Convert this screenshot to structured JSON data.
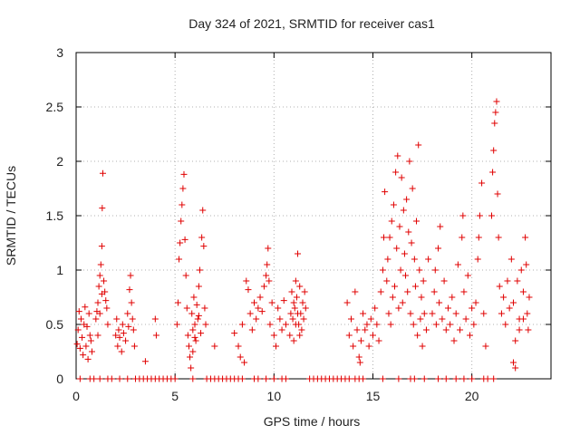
{
  "chart_data": {
    "type": "scatter",
    "title": "Day 324 of 2021, SRMTID for receiver cas1",
    "xlabel": "GPS time / hours",
    "ylabel": "SRMTID / TECUs",
    "xlim": [
      0,
      24
    ],
    "ylim": [
      0,
      3
    ],
    "xticks": [
      0,
      5,
      10,
      15,
      20
    ],
    "xtick_labels": [
      "0",
      "5",
      "10",
      "15",
      "20"
    ],
    "yticks": [
      0,
      0.5,
      1,
      1.5,
      2,
      2.5,
      3
    ],
    "ytick_labels": [
      "0",
      "0.5",
      "1",
      "1.5",
      "2",
      "2.5",
      "3"
    ],
    "grid": true,
    "marker": "+",
    "color": "#e00000",
    "series": [
      {
        "name": "SRMTID",
        "points": [
          [
            0.05,
            0.32
          ],
          [
            0.1,
            0.45
          ],
          [
            0.15,
            0.62
          ],
          [
            0.2,
            0.28
          ],
          [
            0.25,
            0.55
          ],
          [
            0.3,
            0.38
          ],
          [
            0.35,
            0.22
          ],
          [
            0.4,
            0.5
          ],
          [
            0.45,
            0.66
          ],
          [
            0.5,
            0.3
          ],
          [
            0.55,
            0.48
          ],
          [
            0.6,
            0.18
          ],
          [
            0.65,
            0.6
          ],
          [
            0.7,
            0.4
          ],
          [
            0.75,
            0.35
          ],
          [
            0.8,
            0.25
          ],
          [
            1.0,
            0.55
          ],
          [
            1.05,
            0.62
          ],
          [
            1.1,
            0.7
          ],
          [
            1.15,
            0.85
          ],
          [
            1.2,
            0.95
          ],
          [
            1.25,
            1.05
          ],
          [
            1.3,
            1.22
          ],
          [
            1.32,
            1.57
          ],
          [
            1.35,
            1.89
          ],
          [
            1.4,
            0.9
          ],
          [
            1.45,
            0.8
          ],
          [
            1.5,
            0.72
          ],
          [
            1.55,
            0.65
          ],
          [
            1.6,
            0.5
          ],
          [
            1.3,
            0.78
          ],
          [
            1.2,
            0.6
          ],
          [
            1.1,
            0.4
          ],
          [
            2.0,
            0.4
          ],
          [
            2.05,
            0.55
          ],
          [
            2.1,
            0.3
          ],
          [
            2.15,
            0.45
          ],
          [
            2.2,
            0.38
          ],
          [
            2.3,
            0.25
          ],
          [
            2.35,
            0.5
          ],
          [
            2.4,
            0.42
          ],
          [
            2.5,
            0.35
          ],
          [
            2.6,
            0.6
          ],
          [
            2.65,
            0.48
          ],
          [
            2.7,
            0.82
          ],
          [
            2.75,
            0.95
          ],
          [
            2.8,
            0.7
          ],
          [
            2.85,
            0.55
          ],
          [
            2.9,
            0.45
          ],
          [
            2.95,
            0.3
          ],
          [
            3.5,
            0.16
          ],
          [
            4.0,
            0.55
          ],
          [
            4.05,
            0.4
          ],
          [
            5.1,
            0.5
          ],
          [
            5.15,
            0.7
          ],
          [
            5.2,
            1.1
          ],
          [
            5.25,
            1.25
          ],
          [
            5.3,
            1.45
          ],
          [
            5.35,
            1.6
          ],
          [
            5.4,
            1.75
          ],
          [
            5.45,
            1.88
          ],
          [
            5.5,
            1.28
          ],
          [
            5.55,
            0.95
          ],
          [
            5.6,
            0.65
          ],
          [
            5.65,
            0.4
          ],
          [
            5.7,
            0.3
          ],
          [
            5.75,
            0.2
          ],
          [
            5.8,
            0.1
          ],
          [
            5.85,
            0.6
          ],
          [
            5.9,
            0.45
          ],
          [
            5.95,
            0.75
          ],
          [
            6.0,
            0.5
          ],
          [
            6.05,
            0.35
          ],
          [
            6.1,
            0.68
          ],
          [
            6.15,
            0.55
          ],
          [
            6.2,
            0.85
          ],
          [
            6.25,
            1.0
          ],
          [
            6.3,
            0.42
          ],
          [
            6.35,
            1.3
          ],
          [
            6.4,
            1.55
          ],
          [
            6.45,
            1.22
          ],
          [
            6.5,
            0.65
          ],
          [
            6.55,
            0.5
          ],
          [
            5.9,
            0.25
          ],
          [
            6.0,
            0.38
          ],
          [
            6.2,
            0.58
          ],
          [
            7.0,
            0.3
          ],
          [
            8.0,
            0.42
          ],
          [
            8.2,
            0.3
          ],
          [
            8.3,
            0.2
          ],
          [
            8.4,
            0.5
          ],
          [
            8.5,
            0.15
          ],
          [
            8.6,
            0.9
          ],
          [
            8.7,
            0.82
          ],
          [
            8.8,
            0.6
          ],
          [
            8.9,
            0.45
          ],
          [
            9.0,
            0.7
          ],
          [
            9.1,
            0.55
          ],
          [
            9.2,
            0.65
          ],
          [
            9.3,
            0.75
          ],
          [
            9.4,
            0.62
          ],
          [
            9.5,
            0.85
          ],
          [
            9.6,
            0.95
          ],
          [
            9.65,
            1.05
          ],
          [
            9.7,
            1.2
          ],
          [
            9.75,
            0.9
          ],
          [
            9.8,
            0.5
          ],
          [
            9.9,
            0.7
          ],
          [
            10.0,
            0.4
          ],
          [
            10.1,
            0.3
          ],
          [
            10.2,
            0.65
          ],
          [
            10.3,
            0.55
          ],
          [
            10.4,
            0.45
          ],
          [
            10.5,
            0.72
          ],
          [
            10.6,
            0.5
          ],
          [
            10.8,
            0.4
          ],
          [
            10.85,
            0.6
          ],
          [
            10.9,
            0.8
          ],
          [
            10.95,
            0.55
          ],
          [
            11.0,
            0.7
          ],
          [
            11.05,
            0.65
          ],
          [
            11.1,
            0.9
          ],
          [
            11.15,
            0.75
          ],
          [
            11.2,
            1.15
          ],
          [
            11.25,
            0.5
          ],
          [
            11.3,
            0.85
          ],
          [
            11.35,
            0.6
          ],
          [
            11.4,
            0.45
          ],
          [
            11.45,
            0.7
          ],
          [
            11.5,
            0.55
          ],
          [
            11.55,
            0.8
          ],
          [
            11.6,
            0.65
          ],
          [
            11.0,
            0.35
          ],
          [
            11.1,
            0.5
          ],
          [
            11.2,
            0.6
          ],
          [
            11.3,
            0.4
          ],
          [
            13.7,
            0.7
          ],
          [
            13.8,
            0.4
          ],
          [
            13.9,
            0.55
          ],
          [
            14.0,
            0.3
          ],
          [
            14.1,
            0.8
          ],
          [
            14.2,
            0.45
          ],
          [
            14.3,
            0.2
          ],
          [
            14.35,
            0.15
          ],
          [
            14.4,
            0.35
          ],
          [
            14.5,
            0.6
          ],
          [
            14.6,
            0.45
          ],
          [
            14.7,
            0.5
          ],
          [
            14.8,
            0.3
          ],
          [
            14.9,
            0.55
          ],
          [
            15.0,
            0.4
          ],
          [
            15.1,
            0.65
          ],
          [
            15.2,
            0.5
          ],
          [
            15.3,
            0.35
          ],
          [
            15.4,
            0.8
          ],
          [
            15.5,
            1.0
          ],
          [
            15.55,
            1.3
          ],
          [
            15.6,
            1.72
          ],
          [
            15.7,
            0.9
          ],
          [
            15.75,
            1.1
          ],
          [
            15.8,
            0.6
          ],
          [
            15.85,
            1.3
          ],
          [
            15.9,
            0.5
          ],
          [
            15.95,
            1.45
          ],
          [
            16.0,
            0.75
          ],
          [
            16.05,
            1.6
          ],
          [
            16.1,
            0.85
          ],
          [
            16.15,
            1.9
          ],
          [
            16.2,
            1.2
          ],
          [
            16.25,
            2.05
          ],
          [
            16.3,
            0.65
          ],
          [
            16.35,
            1.4
          ],
          [
            16.4,
            1.0
          ],
          [
            16.45,
            1.85
          ],
          [
            16.5,
            0.7
          ],
          [
            16.55,
            1.55
          ],
          [
            16.6,
            1.15
          ],
          [
            16.65,
            0.95
          ],
          [
            16.7,
            1.65
          ],
          [
            16.75,
            0.8
          ],
          [
            16.8,
            1.35
          ],
          [
            16.85,
            2.0
          ],
          [
            16.9,
            0.6
          ],
          [
            16.95,
            1.25
          ],
          [
            17.0,
            1.75
          ],
          [
            17.05,
            0.5
          ],
          [
            17.1,
            1.1
          ],
          [
            17.15,
            0.85
          ],
          [
            17.2,
            1.45
          ],
          [
            17.25,
            0.4
          ],
          [
            17.3,
            2.15
          ],
          [
            17.35,
            1.0
          ],
          [
            17.4,
            0.55
          ],
          [
            17.45,
            0.75
          ],
          [
            17.5,
            0.3
          ],
          [
            17.55,
            0.9
          ],
          [
            17.6,
            0.6
          ],
          [
            17.7,
            0.45
          ],
          [
            17.8,
            1.1
          ],
          [
            18.0,
            0.6
          ],
          [
            18.1,
            0.8
          ],
          [
            18.15,
            1.0
          ],
          [
            18.2,
            0.5
          ],
          [
            18.3,
            1.2
          ],
          [
            18.35,
            0.7
          ],
          [
            18.4,
            1.4
          ],
          [
            18.5,
            0.55
          ],
          [
            18.6,
            0.9
          ],
          [
            18.7,
            0.45
          ],
          [
            18.8,
            0.65
          ],
          [
            18.9,
            0.5
          ],
          [
            19.0,
            0.75
          ],
          [
            19.1,
            0.35
          ],
          [
            19.2,
            0.6
          ],
          [
            19.3,
            1.05
          ],
          [
            19.4,
            0.45
          ],
          [
            19.5,
            1.3
          ],
          [
            19.55,
            1.5
          ],
          [
            19.6,
            0.8
          ],
          [
            19.7,
            0.55
          ],
          [
            19.8,
            0.95
          ],
          [
            19.9,
            0.4
          ],
          [
            20.0,
            0.65
          ],
          [
            20.1,
            0.5
          ],
          [
            20.2,
            0.7
          ],
          [
            20.3,
            1.1
          ],
          [
            20.35,
            1.3
          ],
          [
            20.4,
            1.5
          ],
          [
            20.5,
            1.8
          ],
          [
            20.6,
            0.6
          ],
          [
            20.7,
            0.3
          ],
          [
            21.0,
            1.5
          ],
          [
            21.05,
            1.9
          ],
          [
            21.1,
            2.1
          ],
          [
            21.15,
            2.35
          ],
          [
            21.2,
            2.45
          ],
          [
            21.25,
            2.55
          ],
          [
            21.3,
            1.7
          ],
          [
            21.35,
            1.3
          ],
          [
            21.4,
            0.85
          ],
          [
            21.5,
            0.6
          ],
          [
            21.6,
            0.75
          ],
          [
            21.7,
            0.5
          ],
          [
            21.8,
            0.9
          ],
          [
            21.9,
            0.65
          ],
          [
            22.0,
            1.1
          ],
          [
            22.1,
            0.7
          ],
          [
            22.2,
            0.35
          ],
          [
            22.3,
            0.9
          ],
          [
            22.4,
            0.55
          ],
          [
            22.5,
            1.0
          ],
          [
            22.6,
            0.8
          ],
          [
            22.7,
            1.3
          ],
          [
            22.75,
            1.05
          ],
          [
            22.8,
            0.6
          ],
          [
            22.85,
            0.45
          ],
          [
            22.9,
            0.75
          ],
          [
            22.2,
            0.1
          ],
          [
            22.1,
            0.15
          ],
          [
            22.4,
            0.45
          ],
          [
            22.6,
            0.55
          ],
          [
            0.2,
            0
          ],
          [
            0.7,
            0
          ],
          [
            0.9,
            0
          ],
          [
            1.2,
            0
          ],
          [
            1.6,
            0
          ],
          [
            1.8,
            0
          ],
          [
            2.2,
            0
          ],
          [
            2.6,
            0
          ],
          [
            3.0,
            0
          ],
          [
            3.2,
            0
          ],
          [
            3.4,
            0
          ],
          [
            3.6,
            0
          ],
          [
            3.8,
            0
          ],
          [
            4.0,
            0
          ],
          [
            4.2,
            0
          ],
          [
            4.4,
            0
          ],
          [
            4.6,
            0
          ],
          [
            4.8,
            0
          ],
          [
            5.0,
            0
          ],
          [
            5.9,
            0
          ],
          [
            6.6,
            0
          ],
          [
            6.8,
            0
          ],
          [
            7.0,
            0
          ],
          [
            7.2,
            0
          ],
          [
            7.4,
            0
          ],
          [
            7.6,
            0
          ],
          [
            7.8,
            0
          ],
          [
            8.0,
            0
          ],
          [
            8.2,
            0
          ],
          [
            8.4,
            0
          ],
          [
            9.0,
            0
          ],
          [
            9.2,
            0
          ],
          [
            9.6,
            0
          ],
          [
            10.0,
            0
          ],
          [
            10.4,
            0
          ],
          [
            10.6,
            0
          ],
          [
            11.8,
            0
          ],
          [
            12.0,
            0
          ],
          [
            12.2,
            0
          ],
          [
            12.4,
            0
          ],
          [
            12.6,
            0
          ],
          [
            12.8,
            0
          ],
          [
            13.0,
            0
          ],
          [
            13.2,
            0
          ],
          [
            13.4,
            0
          ],
          [
            13.6,
            0
          ],
          [
            13.8,
            0
          ],
          [
            14.1,
            0
          ],
          [
            14.3,
            0
          ],
          [
            14.5,
            0
          ],
          [
            15.5,
            0
          ],
          [
            16.3,
            0
          ],
          [
            16.9,
            0
          ],
          [
            17.1,
            0
          ],
          [
            17.6,
            0
          ],
          [
            18.3,
            0
          ],
          [
            18.7,
            0
          ],
          [
            19.2,
            0
          ],
          [
            19.6,
            0
          ],
          [
            20.0,
            0
          ],
          [
            20.6,
            0
          ],
          [
            20.8,
            0
          ],
          [
            21.1,
            0
          ]
        ]
      }
    ]
  }
}
